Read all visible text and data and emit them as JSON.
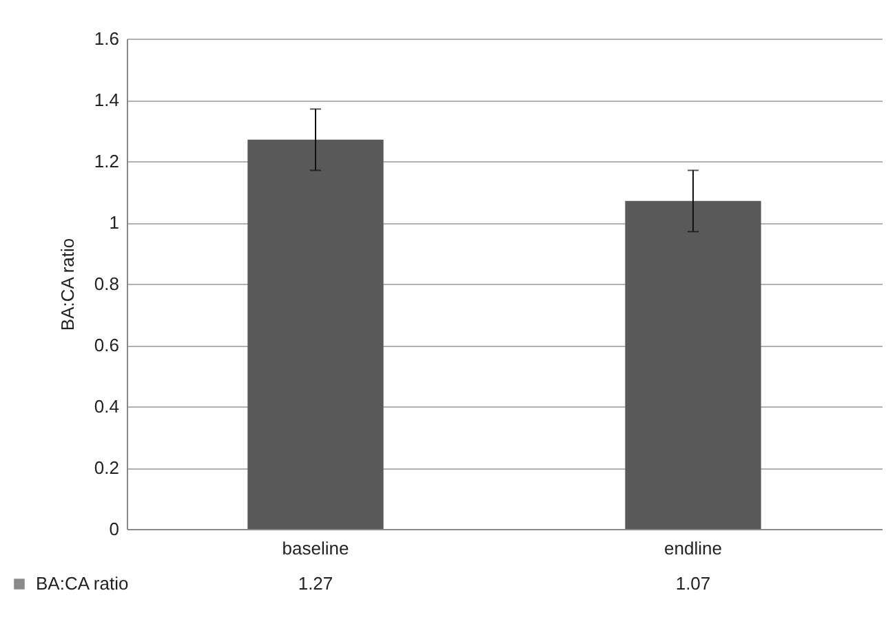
{
  "chart_data": {
    "type": "bar",
    "ylabel": "BA:CA ratio",
    "categories": [
      "baseline",
      "endline"
    ],
    "series": [
      {
        "name": "BA:CA ratio",
        "color": "#595959",
        "values": [
          1.27,
          1.07
        ],
        "errors": [
          0.1,
          0.1
        ]
      }
    ],
    "ylim": [
      0,
      1.6
    ],
    "yticks": [
      0,
      0.2,
      0.4,
      0.6,
      0.8,
      1,
      1.2,
      1.4,
      1.6
    ],
    "grid": "y",
    "legend": "bottom",
    "data_labels": true
  }
}
